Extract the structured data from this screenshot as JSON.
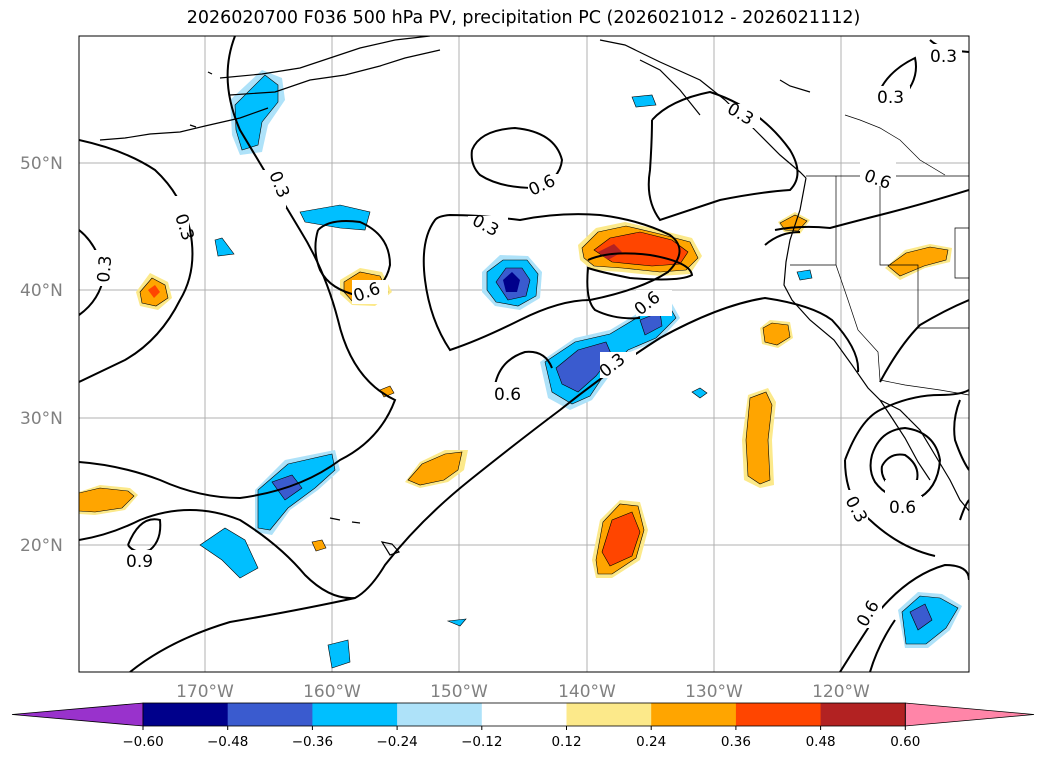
{
  "title": "2026020700 F036 500 hPa PV, precipitation PC (2026021012 - 2026021112)",
  "map": {
    "lat_labels": [
      "50°N",
      "40°N",
      "30°N",
      "20°N"
    ],
    "lon_labels": [
      "170°W",
      "160°W",
      "150°W",
      "140°W",
      "130°W",
      "120°W"
    ],
    "contour_labels": [
      "0.3",
      "0.3",
      "0.3",
      "0.3",
      "0.3",
      "0.3",
      "0.3",
      "0.3",
      "0.3",
      "0.6",
      "0.6",
      "0.6",
      "0.6",
      "0.6",
      "0.6",
      "0.6",
      "0.9"
    ]
  },
  "colorbar": {
    "ticks": [
      "−0.60",
      "−0.48",
      "−0.36",
      "−0.24",
      "−0.12",
      "0.12",
      "0.24",
      "0.36",
      "0.48",
      "0.60"
    ],
    "bins": [
      {
        "color": "#9932CC"
      },
      {
        "color": "#00008B"
      },
      {
        "color": "#3A5BCF"
      },
      {
        "color": "#00BFFF"
      },
      {
        "color": "#AEE2F9"
      },
      {
        "color": "#FFFFFF"
      },
      {
        "color": "#FCE98A"
      },
      {
        "color": "#FFA500"
      },
      {
        "color": "#FF4500"
      },
      {
        "color": "#B22222"
      },
      {
        "color": "#FF85A8"
      }
    ]
  }
}
